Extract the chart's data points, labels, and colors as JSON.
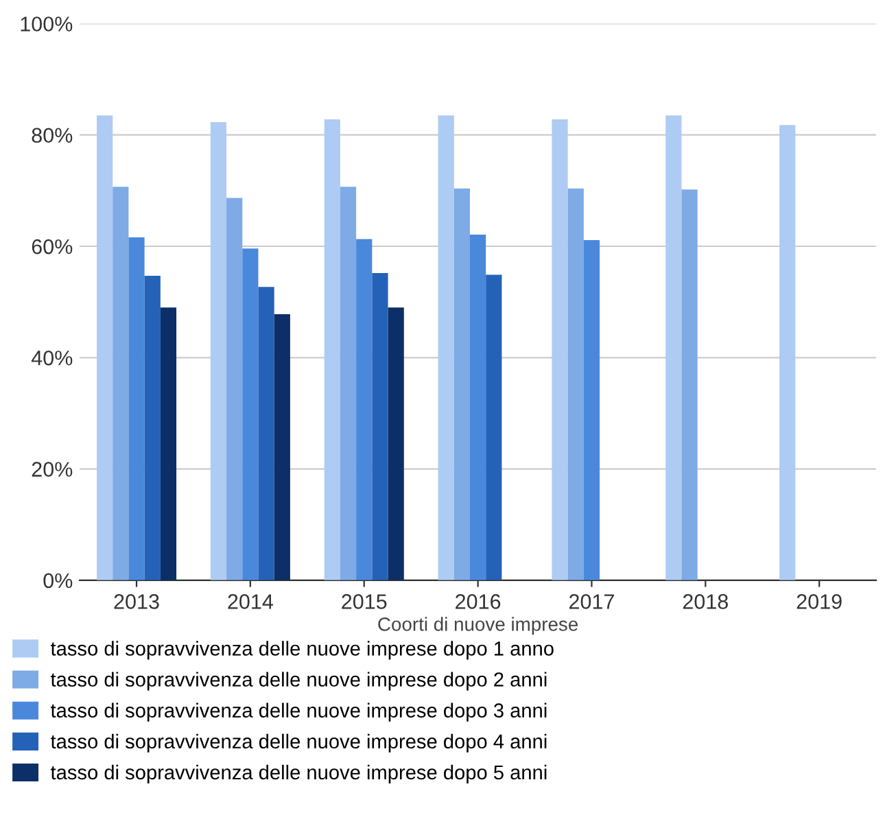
{
  "chart_data": {
    "type": "bar",
    "xlabel": "Coorti di nuove imprese",
    "categories": [
      "2013",
      "2014",
      "2015",
      "2016",
      "2017",
      "2018",
      "2019"
    ],
    "series": [
      {
        "name": "tasso di sopravvivenza delle nuove imprese dopo 1 anno",
        "color": "#aecbf3",
        "values": [
          83.5,
          82.3,
          82.8,
          83.5,
          82.8,
          83.5,
          81.8
        ]
      },
      {
        "name": "tasso di sopravvivenza delle nuove imprese dopo 2 anni",
        "color": "#7eaae6",
        "values": [
          70.7,
          68.7,
          70.7,
          70.4,
          70.4,
          70.2,
          null
        ]
      },
      {
        "name": "tasso di sopravvivenza delle nuove imprese dopo 3 anni",
        "color": "#4a88dc",
        "values": [
          61.6,
          59.6,
          61.3,
          62.1,
          61.1,
          null,
          null
        ]
      },
      {
        "name": "tasso di sopravvivenza delle nuove imprese dopo 4 anni",
        "color": "#2462b8",
        "values": [
          54.7,
          52.7,
          55.2,
          54.9,
          null,
          null,
          null
        ]
      },
      {
        "name": "tasso di sopravvivenza delle nuove imprese dopo 5 anni",
        "color": "#0b2f66",
        "values": [
          49.0,
          47.8,
          49.0,
          null,
          null,
          null,
          null
        ]
      }
    ],
    "ylim": [
      0,
      100
    ],
    "yticks": [
      {
        "value": 0,
        "label": "0%"
      },
      {
        "value": 20,
        "label": "20%"
      },
      {
        "value": 40,
        "label": "40%"
      },
      {
        "value": 60,
        "label": "60%"
      },
      {
        "value": 80,
        "label": "80%"
      },
      {
        "value": 100,
        "label": "100%"
      }
    ],
    "grid": "y",
    "legend": "bottom"
  }
}
